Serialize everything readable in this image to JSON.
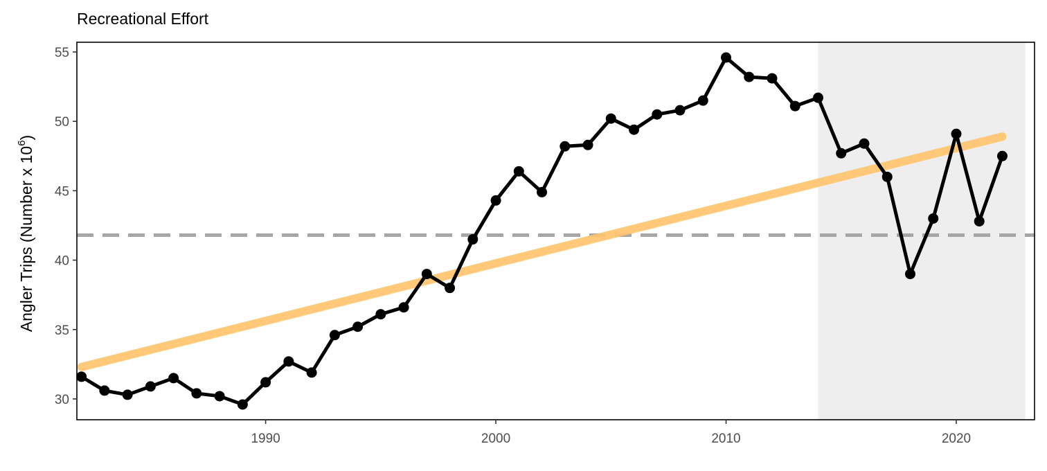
{
  "chart_data": {
    "type": "line",
    "title": "Recreational Effort",
    "xlabel": "",
    "ylabel": "Angler Trips (Number x 10",
    "ylabel_superscript": "6",
    "ylabel_suffix": ")",
    "xlim": [
      1981.8,
      2023.4
    ],
    "ylim": [
      28.5,
      55.7
    ],
    "x_ticks": [
      1990,
      2000,
      2010,
      2020
    ],
    "y_ticks": [
      30,
      35,
      40,
      45,
      50,
      55
    ],
    "grid": false,
    "legend": "none",
    "series": [
      {
        "x": [
          1982,
          1983,
          1984,
          1985,
          1986,
          1987,
          1988,
          1989,
          1990,
          1991,
          1992,
          1993,
          1994,
          1995,
          1996,
          1997,
          1998,
          1999,
          2000,
          2001,
          2002,
          2003,
          2004,
          2005,
          2006,
          2007,
          2008,
          2009,
          2010,
          2011,
          2012,
          2013,
          2014,
          2015,
          2016,
          2017,
          2018,
          2019,
          2020,
          2021,
          2022
        ],
        "values": [
          31.6,
          30.6,
          30.3,
          30.9,
          31.5,
          30.4,
          30.2,
          29.6,
          31.2,
          32.7,
          31.9,
          34.6,
          35.2,
          36.1,
          36.6,
          39.0,
          38.0,
          41.5,
          44.3,
          46.4,
          44.9,
          48.2,
          48.3,
          50.2,
          49.4,
          50.5,
          50.8,
          51.5,
          54.6,
          53.2,
          53.1,
          51.1,
          51.7,
          47.7,
          48.4,
          46.0,
          39.0,
          43.0,
          49.1,
          42.8,
          47.5
        ],
        "color": "#000000"
      }
    ],
    "trend_line": {
      "x": [
        1982,
        2022
      ],
      "values": [
        32.3,
        48.9
      ],
      "color": "#ffc46b"
    },
    "mean_line": {
      "value": 41.8,
      "color": "#a6a6a6",
      "style": "dashed"
    },
    "shaded_region": {
      "x": [
        2014,
        2023
      ],
      "color": "#eeeeee"
    }
  }
}
